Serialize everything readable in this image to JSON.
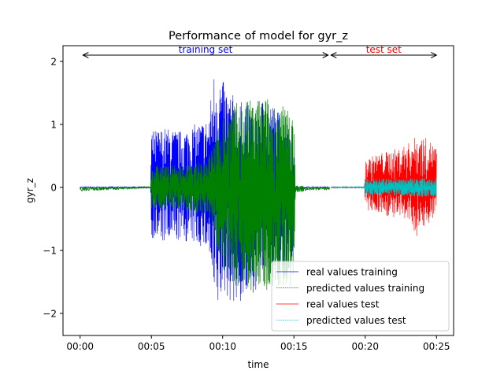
{
  "chart_data": {
    "type": "line",
    "title": "Performance of model for gyr_z",
    "xlabel": "time",
    "ylabel": "gyr_z",
    "x_unit": "minutes",
    "xlim": [
      -1.2,
      26.2
    ],
    "ylim": [
      -2.35,
      2.25
    ],
    "x_ticks": [
      {
        "value": 0,
        "label": "00:00"
      },
      {
        "value": 5,
        "label": "00:05"
      },
      {
        "value": 10,
        "label": "00:10"
      },
      {
        "value": 15,
        "label": "00:15"
      },
      {
        "value": 20,
        "label": "00:20"
      },
      {
        "value": 25,
        "label": "00:25"
      }
    ],
    "y_ticks": [
      {
        "value": 2,
        "label": "2"
      },
      {
        "value": 1,
        "label": "1"
      },
      {
        "value": 0,
        "label": "0"
      },
      {
        "value": -1,
        "label": "−1"
      },
      {
        "value": -2,
        "label": "−2"
      }
    ],
    "annotations": [
      {
        "text": "training set",
        "color": "#0000ff",
        "x_start": 0.2,
        "x_end": 17.4,
        "y": 2.1
      },
      {
        "text": "test set",
        "color": "#ff0000",
        "x_start": 17.6,
        "x_end": 25.0,
        "y": 2.1
      }
    ],
    "legend": {
      "position": "lower-right"
    },
    "series": [
      {
        "name": "real values training",
        "color": "#0000ff",
        "style": "solid",
        "envelope": [
          {
            "x": 0.0,
            "y_max": 0.02,
            "y_min": -0.02
          },
          {
            "x": 4.95,
            "y_max": 0.02,
            "y_min": -0.02
          },
          {
            "x": 5.0,
            "y_max": 0.9,
            "y_min": -0.8
          },
          {
            "x": 6.0,
            "y_max": 0.95,
            "y_min": -0.9
          },
          {
            "x": 7.0,
            "y_max": 0.9,
            "y_min": -0.85
          },
          {
            "x": 8.0,
            "y_max": 1.0,
            "y_min": -0.9
          },
          {
            "x": 9.0,
            "y_max": 1.1,
            "y_min": -1.0
          },
          {
            "x": 9.5,
            "y_max": 2.05,
            "y_min": -2.1
          },
          {
            "x": 10.0,
            "y_max": 1.7,
            "y_min": -1.7
          },
          {
            "x": 11.0,
            "y_max": 1.4,
            "y_min": -1.9
          },
          {
            "x": 12.0,
            "y_max": 1.3,
            "y_min": -1.7
          },
          {
            "x": 13.0,
            "y_max": 1.45,
            "y_min": -1.5
          },
          {
            "x": 14.0,
            "y_max": 1.2,
            "y_min": -1.4
          },
          {
            "x": 15.0,
            "y_max": 0.95,
            "y_min": -1.3
          },
          {
            "x": 15.1,
            "y_max": 0.03,
            "y_min": -0.03
          },
          {
            "x": 17.5,
            "y_max": 0.02,
            "y_min": -0.02
          }
        ]
      },
      {
        "name": "predicted values training",
        "color": "#008000",
        "style": "dotted",
        "envelope": [
          {
            "x": 0.0,
            "y_max": 0.02,
            "y_min": -0.08
          },
          {
            "x": 4.95,
            "y_max": 0.02,
            "y_min": -0.02
          },
          {
            "x": 5.0,
            "y_max": 0.35,
            "y_min": -0.35
          },
          {
            "x": 6.0,
            "y_max": 0.35,
            "y_min": -0.35
          },
          {
            "x": 7.0,
            "y_max": 0.35,
            "y_min": -0.35
          },
          {
            "x": 8.0,
            "y_max": 0.35,
            "y_min": -0.4
          },
          {
            "x": 9.0,
            "y_max": 0.5,
            "y_min": -0.5
          },
          {
            "x": 10.0,
            "y_max": 1.15,
            "y_min": -1.3
          },
          {
            "x": 11.0,
            "y_max": 1.35,
            "y_min": -1.6
          },
          {
            "x": 12.0,
            "y_max": 1.4,
            "y_min": -1.7
          },
          {
            "x": 13.0,
            "y_max": 1.45,
            "y_min": -1.65
          },
          {
            "x": 14.0,
            "y_max": 1.3,
            "y_min": -1.55
          },
          {
            "x": 15.0,
            "y_max": 1.3,
            "y_min": -1.6
          },
          {
            "x": 15.1,
            "y_max": 0.03,
            "y_min": -0.08
          },
          {
            "x": 17.5,
            "y_max": 0.02,
            "y_min": -0.05
          }
        ]
      },
      {
        "name": "real values test",
        "color": "#ff0000",
        "style": "solid",
        "envelope": [
          {
            "x": 17.6,
            "y_max": 0.02,
            "y_min": -0.02
          },
          {
            "x": 19.95,
            "y_max": 0.02,
            "y_min": -0.02
          },
          {
            "x": 20.0,
            "y_max": 0.45,
            "y_min": -0.4
          },
          {
            "x": 21.0,
            "y_max": 0.55,
            "y_min": -0.4
          },
          {
            "x": 22.0,
            "y_max": 0.6,
            "y_min": -0.5
          },
          {
            "x": 23.0,
            "y_max": 0.7,
            "y_min": -0.55
          },
          {
            "x": 23.7,
            "y_max": 0.85,
            "y_min": -0.8
          },
          {
            "x": 24.5,
            "y_max": 0.75,
            "y_min": -0.55
          },
          {
            "x": 25.0,
            "y_max": 0.65,
            "y_min": -0.5
          }
        ]
      },
      {
        "name": "predicted values test",
        "color": "#00bfbf",
        "style": "dotted",
        "envelope": [
          {
            "x": 17.6,
            "y_max": 0.02,
            "y_min": -0.02
          },
          {
            "x": 19.95,
            "y_max": 0.02,
            "y_min": -0.02
          },
          {
            "x": 20.0,
            "y_max": 0.15,
            "y_min": -0.15
          },
          {
            "x": 21.0,
            "y_max": 0.14,
            "y_min": -0.14
          },
          {
            "x": 22.0,
            "y_max": 0.14,
            "y_min": -0.14
          },
          {
            "x": 23.0,
            "y_max": 0.15,
            "y_min": -0.14
          },
          {
            "x": 24.0,
            "y_max": 0.15,
            "y_min": -0.15
          },
          {
            "x": 25.0,
            "y_max": 0.15,
            "y_min": -0.15
          }
        ]
      }
    ]
  }
}
